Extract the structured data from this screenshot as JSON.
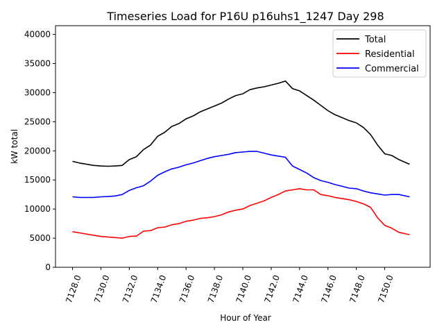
{
  "chart_data": {
    "type": "line",
    "title": "Timeseries Load for P16U p16uhs1_1247  Day 298",
    "xlabel": "Hour of Year",
    "ylabel": "kW total",
    "xlim": [
      7126.8,
      7153.2
    ],
    "ylim": [
      0,
      41500
    ],
    "xticks": [
      7128,
      7130,
      7132,
      7134,
      7136,
      7138,
      7140,
      7142,
      7144,
      7146,
      7148,
      7150
    ],
    "xtick_labels": [
      "7128.0",
      "7130.0",
      "7132.0",
      "7134.0",
      "7136.0",
      "7138.0",
      "7140.0",
      "7142.0",
      "7144.0",
      "7146.0",
      "7148.0",
      "7150.0"
    ],
    "yticks": [
      0,
      5000,
      10000,
      15000,
      20000,
      25000,
      30000,
      35000,
      40000
    ],
    "ytick_labels": [
      "0",
      "5000",
      "10000",
      "15000",
      "20000",
      "25000",
      "30000",
      "35000",
      "40000"
    ],
    "legend_position": "top-right",
    "grid": false,
    "x": [
      7128,
      7128.5,
      7129,
      7129.5,
      7130,
      7130.5,
      7131,
      7131.5,
      7132,
      7132.5,
      7133,
      7133.5,
      7134,
      7134.5,
      7135,
      7135.5,
      7136,
      7136.5,
      7137,
      7137.5,
      7138,
      7138.5,
      7139,
      7139.5,
      7140,
      7140.5,
      7141,
      7141.5,
      7142,
      7142.5,
      7143,
      7143.5,
      7144,
      7144.5,
      7145,
      7145.5,
      7146,
      7146.5,
      7147,
      7147.5,
      7148,
      7148.5,
      7149,
      7149.5,
      7150,
      7150.5,
      7151,
      7151.75
    ],
    "series": [
      {
        "name": "Total",
        "color": "#000000",
        "values": [
          18200,
          17900,
          17700,
          17500,
          17400,
          17350,
          17400,
          17500,
          18500,
          19000,
          20200,
          21000,
          22500,
          23200,
          24200,
          24700,
          25500,
          26000,
          26700,
          27200,
          27700,
          28200,
          28900,
          29500,
          29800,
          30500,
          30800,
          31000,
          31300,
          31600,
          32000,
          30700,
          30300,
          29500,
          28700,
          27800,
          26900,
          26200,
          25700,
          25200,
          24800,
          24000,
          22800,
          21000,
          19500,
          19200,
          18500,
          17700
        ]
      },
      {
        "name": "Residential",
        "color": "#ff0000",
        "values": [
          6100,
          5900,
          5700,
          5500,
          5300,
          5200,
          5100,
          5000,
          5300,
          5350,
          6200,
          6300,
          6800,
          6900,
          7300,
          7500,
          7900,
          8100,
          8400,
          8500,
          8700,
          9000,
          9500,
          9800,
          10000,
          10600,
          11000,
          11400,
          12000,
          12500,
          13100,
          13300,
          13500,
          13300,
          13300,
          12500,
          12300,
          12000,
          11800,
          11600,
          11300,
          10900,
          10300,
          8500,
          7200,
          6700,
          6000,
          5600
        ]
      },
      {
        "name": "Commercial",
        "color": "#0000ff",
        "values": [
          12100,
          12000,
          12000,
          12000,
          12100,
          12150,
          12250,
          12500,
          13200,
          13650,
          14000,
          14800,
          15800,
          16400,
          16900,
          17200,
          17600,
          17900,
          18300,
          18700,
          19000,
          19200,
          19400,
          19700,
          19800,
          19900,
          19900,
          19600,
          19300,
          19100,
          18900,
          17400,
          16800,
          16200,
          15400,
          14900,
          14600,
          14200,
          13900,
          13600,
          13500,
          13100,
          12800,
          12600,
          12400,
          12500,
          12500,
          12100
        ]
      }
    ]
  }
}
